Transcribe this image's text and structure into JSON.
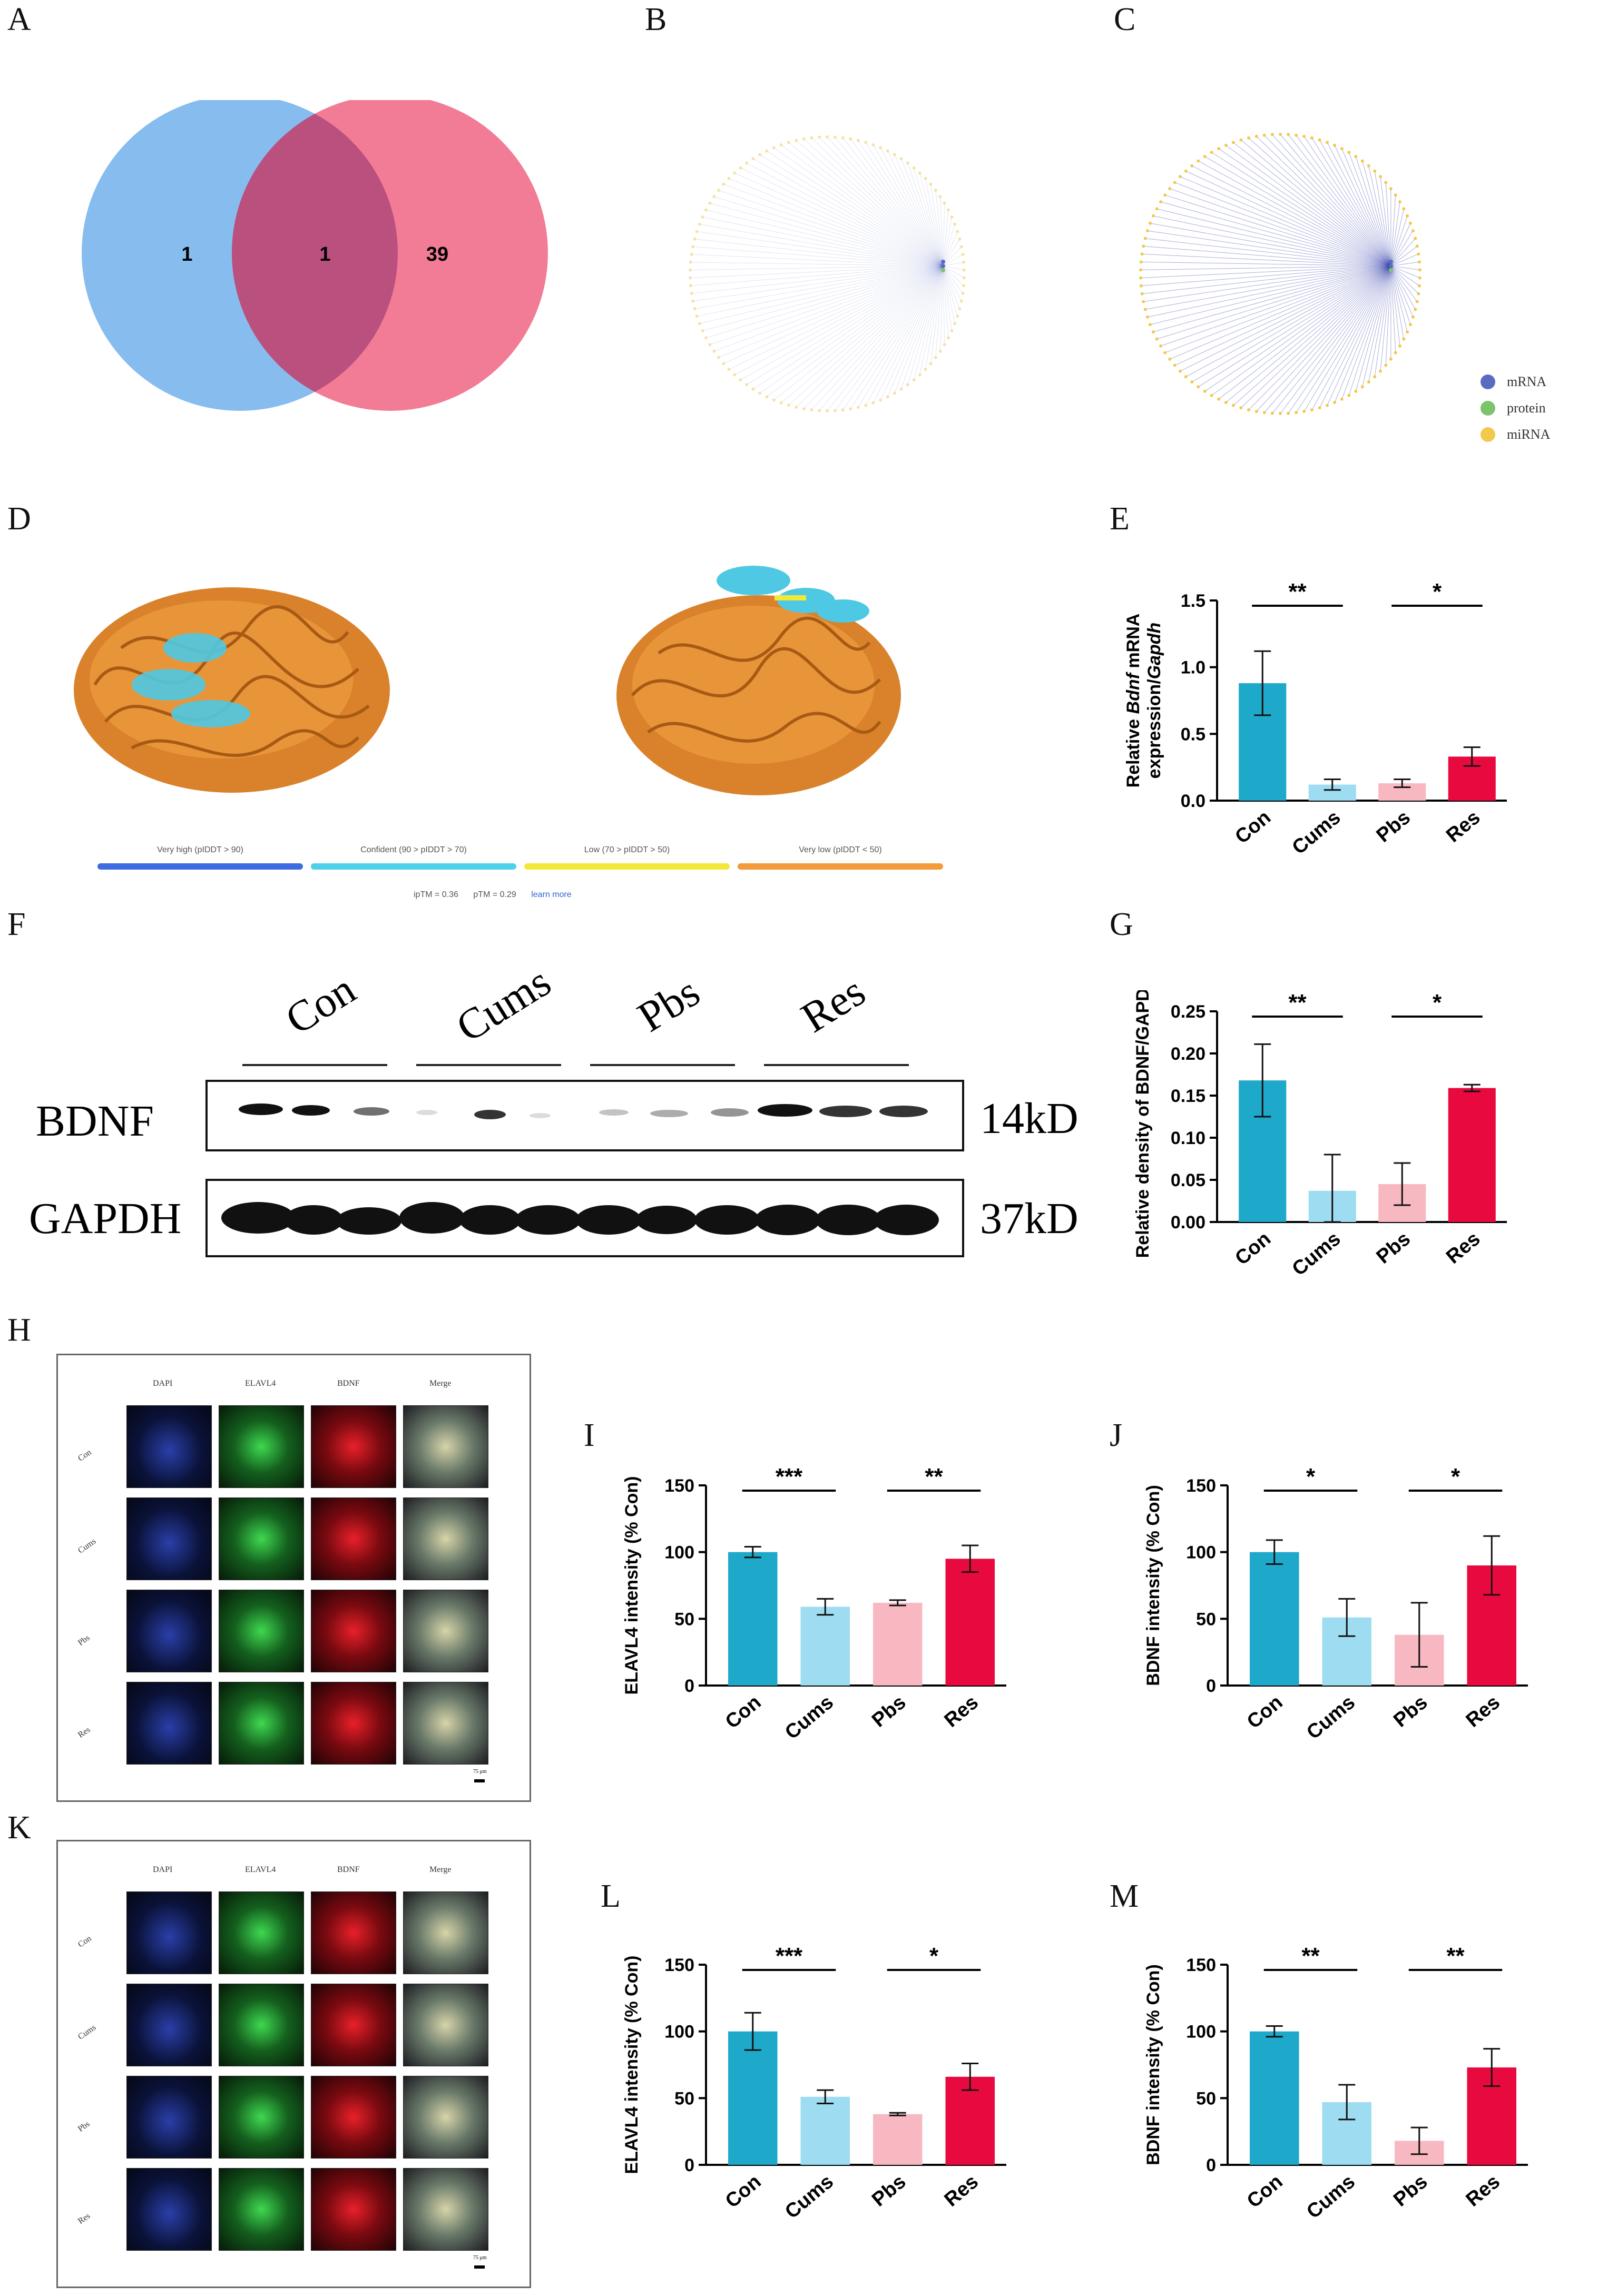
{
  "panel_labels": [
    "A",
    "B",
    "C",
    "D",
    "E",
    "F",
    "G",
    "H",
    "I",
    "J",
    "K",
    "L",
    "M"
  ],
  "venn": {
    "left": "1",
    "overlap": "1",
    "right": "39",
    "left_color": "#87BCEF",
    "right_color": "#F27B96",
    "overlap_color": "#B9507E"
  },
  "network_legend": [
    {
      "label": "mRNA",
      "color": "#5B6BC0"
    },
    {
      "label": "protein",
      "color": "#7BC46C"
    },
    {
      "label": "miRNA",
      "color": "#F2C94C"
    }
  ],
  "plddt": {
    "items": [
      {
        "label": "Very high (pIDDT > 90)",
        "color": "#3D6BE0"
      },
      {
        "label": "Confident (90 > pIDDT > 70)",
        "color": "#4FD0EA"
      },
      {
        "label": "Low (70 > pIDDT > 50)",
        "color": "#F3E839"
      },
      {
        "label": "Very low (pIDDT < 50)",
        "color": "#F39A3A"
      }
    ],
    "iptm": "ipTM = 0.36",
    "ptm": "pTM = 0.29",
    "link": "learn more"
  },
  "western": {
    "groups": [
      "Con",
      "Cums",
      "Pbs",
      "Res"
    ],
    "rows": [
      {
        "name": "BDNF",
        "size": "14kD"
      },
      {
        "name": "GAPDH",
        "size": "37kD"
      }
    ]
  },
  "micro": {
    "headers": [
      "DAPI",
      "ELAVL4",
      "BDNF",
      "Merge"
    ],
    "rows": [
      "Con",
      "Cums",
      "Pbs",
      "Res"
    ],
    "scale": "75 μm"
  },
  "colors": {
    "Con": "#1EA8C9",
    "Cums": "#9EDCF2",
    "Pbs": "#F8B8C2",
    "Res": "#E8093F"
  },
  "chart_data": [
    {
      "id": "E",
      "type": "bar",
      "categories": [
        "Con",
        "Cums",
        "Pbs",
        "Res"
      ],
      "values": [
        0.88,
        0.12,
        0.13,
        0.33
      ],
      "errors": [
        0.24,
        0.04,
        0.03,
        0.07
      ],
      "ylabel_parts": [
        "Relative ",
        "Bdnf",
        " mRNA",
        "expression/",
        "Gapdh"
      ],
      "ylim": [
        0,
        1.5
      ],
      "ticks": [
        "0.0",
        "0.5",
        "1.0",
        "1.5"
      ],
      "sig": [
        {
          "a": 0,
          "b": 1,
          "text": "**"
        },
        {
          "a": 2,
          "b": 3,
          "text": "*"
        }
      ]
    },
    {
      "id": "G",
      "type": "bar",
      "categories": [
        "Con",
        "Cums",
        "Pbs",
        "Res"
      ],
      "values": [
        0.168,
        0.037,
        0.045,
        0.159
      ],
      "errors": [
        0.043,
        0.043,
        0.025,
        0.004
      ],
      "ylabel": "Relative density of BDNF/GAPDH",
      "ylim": [
        0,
        0.25
      ],
      "ticks": [
        "0.00",
        "0.05",
        "0.10",
        "0.15",
        "0.20",
        "0.25"
      ],
      "sig": [
        {
          "a": 0,
          "b": 1,
          "text": "**"
        },
        {
          "a": 2,
          "b": 3,
          "text": "*"
        }
      ]
    },
    {
      "id": "I",
      "type": "bar",
      "categories": [
        "Con",
        "Cums",
        "Pbs",
        "Res"
      ],
      "values": [
        100,
        59,
        62,
        95
      ],
      "errors": [
        4,
        6,
        2,
        10
      ],
      "ylabel": "ELAVL4 intensity (% Con)",
      "ylim": [
        0,
        150
      ],
      "ticks": [
        "0",
        "50",
        "100",
        "150"
      ],
      "sig": [
        {
          "a": 0,
          "b": 1,
          "text": "***"
        },
        {
          "a": 2,
          "b": 3,
          "text": "**"
        }
      ]
    },
    {
      "id": "J",
      "type": "bar",
      "categories": [
        "Con",
        "Cums",
        "Pbs",
        "Res"
      ],
      "values": [
        100,
        51,
        38,
        90
      ],
      "errors": [
        9,
        14,
        24,
        22
      ],
      "ylabel": "BDNF intensity (% Con)",
      "ylim": [
        0,
        150
      ],
      "ticks": [
        "0",
        "50",
        "100",
        "150"
      ],
      "sig": [
        {
          "a": 0,
          "b": 1,
          "text": "*"
        },
        {
          "a": 2,
          "b": 3,
          "text": "*"
        }
      ]
    },
    {
      "id": "L",
      "type": "bar",
      "categories": [
        "Con",
        "Cums",
        "Pbs",
        "Res"
      ],
      "values": [
        100,
        51,
        38,
        66
      ],
      "errors": [
        14,
        5,
        1,
        10
      ],
      "ylabel": "ELAVL4 intensity (% Con)",
      "ylim": [
        0,
        150
      ],
      "ticks": [
        "0",
        "50",
        "100",
        "150"
      ],
      "sig": [
        {
          "a": 0,
          "b": 1,
          "text": "***"
        },
        {
          "a": 2,
          "b": 3,
          "text": "*"
        }
      ]
    },
    {
      "id": "M",
      "type": "bar",
      "categories": [
        "Con",
        "Cums",
        "Pbs",
        "Res"
      ],
      "values": [
        100,
        47,
        18,
        73
      ],
      "errors": [
        4,
        13,
        10,
        14
      ],
      "ylabel": "BDNF intensity (% Con)",
      "ylim": [
        0,
        150
      ],
      "ticks": [
        "0",
        "50",
        "100",
        "150"
      ],
      "sig": [
        {
          "a": 0,
          "b": 1,
          "text": "**"
        },
        {
          "a": 2,
          "b": 3,
          "text": "**"
        }
      ]
    }
  ]
}
